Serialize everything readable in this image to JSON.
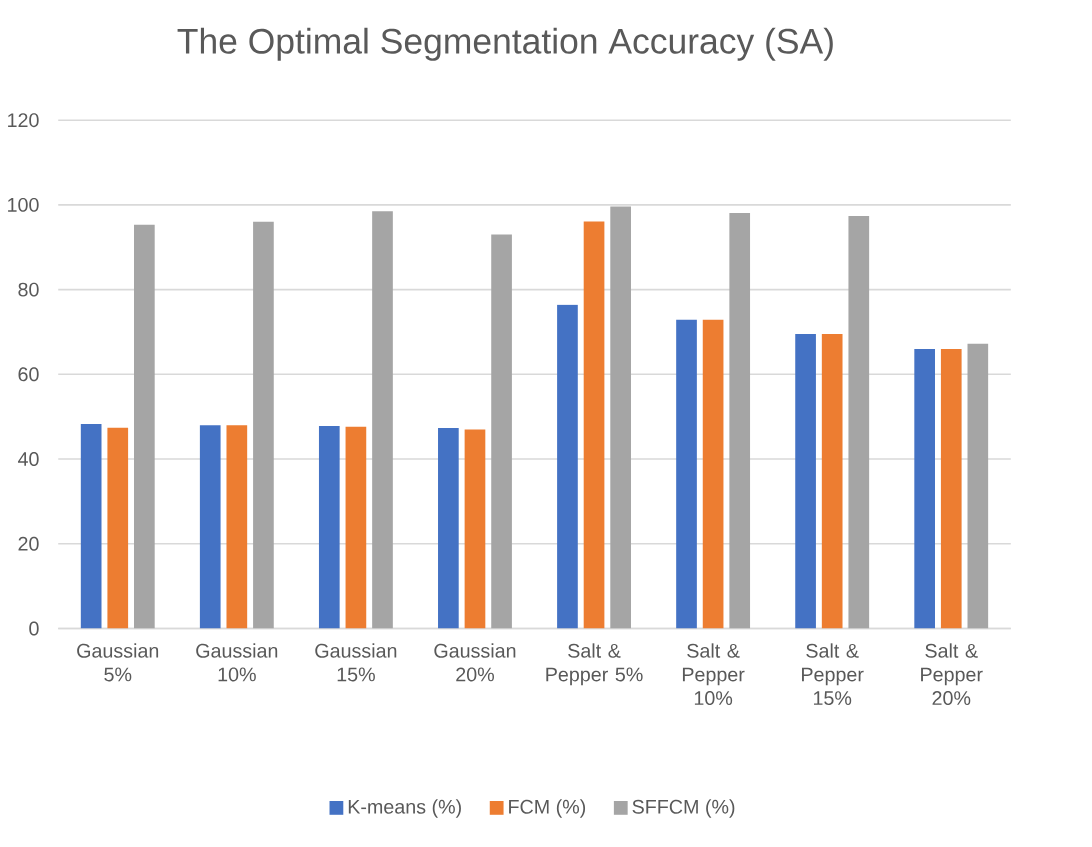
{
  "chart_data": {
    "type": "bar",
    "title": "The Optimal Segmentation Accuracy (SA)",
    "categories": [
      "Gaussian 5%",
      "Gaussian 10%",
      "Gaussian 15%",
      "Gaussian 20%",
      "Salt & Pepper 5%",
      "Salt & Pepper 10%",
      "Salt & Pepper 15%",
      "Salt & Pepper 20%"
    ],
    "series": [
      {
        "name": "K-means (%)",
        "color": "#4472c4",
        "values": [
          48.3,
          48.0,
          47.8,
          47.3,
          76.4,
          72.9,
          69.5,
          66.0
        ]
      },
      {
        "name": "FCM (%)",
        "color": "#ed7d31",
        "values": [
          47.4,
          48.0,
          47.6,
          47.0,
          96.1,
          72.9,
          69.5,
          66.0
        ]
      },
      {
        "name": "SFFCM (%)",
        "color": "#a5a5a5",
        "values": [
          95.3,
          96.0,
          98.5,
          93.0,
          99.6,
          98.1,
          97.4,
          67.2
        ]
      }
    ],
    "ylim": [
      0,
      120
    ],
    "yticks": [
      0,
      20,
      40,
      60,
      80,
      100,
      120
    ],
    "grid": "y",
    "legend": "bottom"
  }
}
